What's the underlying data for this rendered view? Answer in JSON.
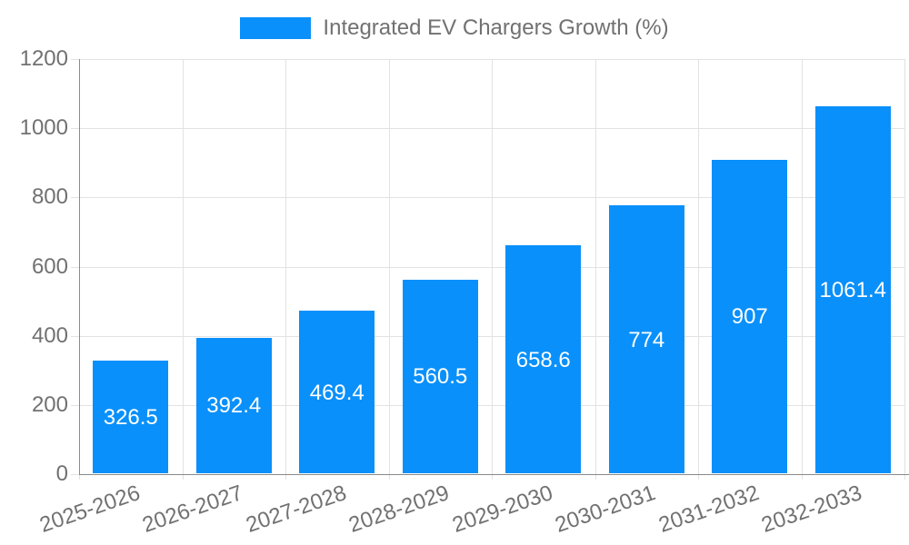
{
  "chart_data": {
    "type": "bar",
    "title": "",
    "legend": {
      "label": "Integrated EV Chargers Growth (%)",
      "position": "top-center"
    },
    "categories": [
      "2025-2026",
      "2026-2027",
      "2027-2028",
      "2028-2029",
      "2029-2030",
      "2030-2031",
      "2031-2032",
      "2032-2033"
    ],
    "values": [
      326.5,
      392.4,
      469.4,
      560.5,
      658.6,
      774,
      907,
      1061.4
    ],
    "value_labels": [
      "326.5",
      "392.4",
      "469.4",
      "560.5",
      "658.6",
      "774",
      "907",
      "1061.4"
    ],
    "xlabel": "",
    "ylabel": "",
    "ylim": [
      0,
      1200
    ],
    "yticks": [
      0,
      200,
      400,
      600,
      800,
      1000,
      1200
    ],
    "grid": "both",
    "colors": {
      "bar": "#0a90fa",
      "gridline": "#e2e2e2",
      "axis_line": "#8a8a8a",
      "tick_label": "#717171",
      "legend_text": "#717171",
      "value_label": "#ffffff",
      "background": "#ffffff"
    }
  }
}
